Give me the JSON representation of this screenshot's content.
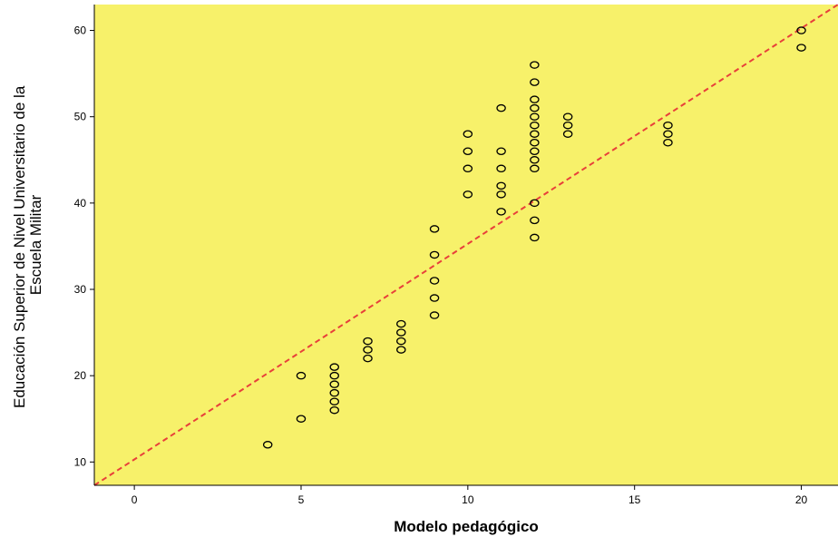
{
  "chart_data": {
    "type": "scatter",
    "title": "",
    "xlabel": "Modelo pedagógico",
    "ylabel_lines": [
      "Educación Superior de Nivel Universitario de la",
      "Escuela Militar"
    ],
    "xlim": [
      -1.2,
      21.1
    ],
    "ylim": [
      7.3,
      63.0
    ],
    "xticks": [
      0,
      5,
      10,
      15,
      20
    ],
    "yticks": [
      10,
      20,
      30,
      40,
      50,
      60
    ],
    "grid": false,
    "background_color": "#f7f16a",
    "marker": "open-circle",
    "marker_color": "#000000",
    "reference_line": {
      "style": "dashed",
      "color": "#e8403a",
      "from": [
        -1.2,
        7.3
      ],
      "to": [
        21.1,
        63.0
      ]
    },
    "points": [
      [
        4,
        12
      ],
      [
        5,
        15
      ],
      [
        5,
        20
      ],
      [
        6,
        16
      ],
      [
        6,
        17
      ],
      [
        6,
        18
      ],
      [
        6,
        19
      ],
      [
        6,
        20
      ],
      [
        6,
        21
      ],
      [
        7,
        22
      ],
      [
        7,
        23
      ],
      [
        7,
        24
      ],
      [
        8,
        23
      ],
      [
        8,
        24
      ],
      [
        8,
        25
      ],
      [
        8,
        26
      ],
      [
        9,
        27
      ],
      [
        9,
        29
      ],
      [
        9,
        31
      ],
      [
        9,
        34
      ],
      [
        9,
        37
      ],
      [
        10,
        41
      ],
      [
        10,
        44
      ],
      [
        10,
        46
      ],
      [
        10,
        48
      ],
      [
        11,
        39
      ],
      [
        11,
        41
      ],
      [
        11,
        42
      ],
      [
        11,
        44
      ],
      [
        11,
        46
      ],
      [
        11,
        51
      ],
      [
        12,
        36
      ],
      [
        12,
        38
      ],
      [
        12,
        40
      ],
      [
        12,
        44
      ],
      [
        12,
        45
      ],
      [
        12,
        46
      ],
      [
        12,
        47
      ],
      [
        12,
        48
      ],
      [
        12,
        49
      ],
      [
        12,
        50
      ],
      [
        12,
        51
      ],
      [
        12,
        52
      ],
      [
        12,
        54
      ],
      [
        12,
        56
      ],
      [
        13,
        48
      ],
      [
        13,
        49
      ],
      [
        13,
        50
      ],
      [
        16,
        47
      ],
      [
        16,
        48
      ],
      [
        16,
        49
      ],
      [
        20,
        58
      ],
      [
        20,
        60
      ]
    ]
  }
}
